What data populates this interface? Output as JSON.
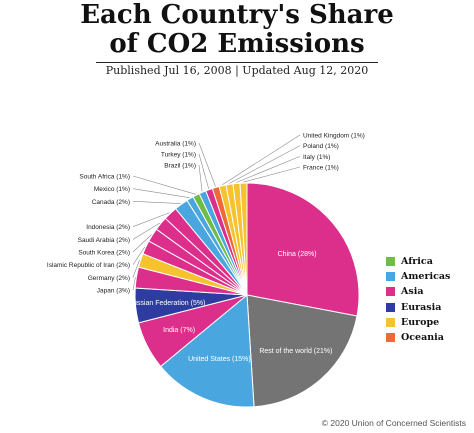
{
  "header": {
    "title_line1": "Each Country's Share",
    "title_line2": "of CO2 Emissions",
    "byline": "Published Jul 16, 2008 | Updated Aug 12, 2020"
  },
  "footer": {
    "copyright": "© 2020 Union of Concerned Scientists"
  },
  "region_colors": {
    "Africa": "#6fbd46",
    "Americas": "#4aa6df",
    "Asia": "#dc2e8b",
    "Eurasia": "#2e3ca0",
    "Europe": "#f6c22f",
    "Oceania": "#ec6a35",
    "Other": "#747474"
  },
  "legend": [
    {
      "label": "Africa",
      "color": "#6fbd46"
    },
    {
      "label": "Americas",
      "color": "#4aa6df"
    },
    {
      "label": "Asia",
      "color": "#dc2e8b"
    },
    {
      "label": "Eurasia",
      "color": "#2e3ca0"
    },
    {
      "label": "Europe",
      "color": "#f6c22f"
    },
    {
      "label": "Oceania",
      "color": "#ec6a35"
    }
  ],
  "chart_data": {
    "type": "pie",
    "title": "Each Country's Share of CO2 Emissions",
    "slices": [
      {
        "name": "China",
        "label": "China (28%)",
        "value": 28,
        "region": "Asia"
      },
      {
        "name": "Rest of the world",
        "label": "Rest of the world (21%)",
        "value": 21,
        "region": "Other"
      },
      {
        "name": "United States",
        "label": "United States (15%)",
        "value": 15,
        "region": "Americas"
      },
      {
        "name": "India",
        "label": "India (7%)",
        "value": 7,
        "region": "Asia"
      },
      {
        "name": "Russian Federation",
        "label": "Russian Federation (5%)",
        "value": 5,
        "region": "Eurasia"
      },
      {
        "name": "Japan",
        "label": "Japan (3%)",
        "value": 3,
        "region": "Asia"
      },
      {
        "name": "Germany",
        "label": "Germany (2%)",
        "value": 2,
        "region": "Europe"
      },
      {
        "name": "Islamic Republic of Iran",
        "label": "Islamic Republic of Iran (2%)",
        "value": 2,
        "region": "Asia"
      },
      {
        "name": "South Korea",
        "label": "South Korea (2%)",
        "value": 2,
        "region": "Asia"
      },
      {
        "name": "Saudi Arabia",
        "label": "Saudi Arabia (2%)",
        "value": 2,
        "region": "Asia"
      },
      {
        "name": "Indonesia",
        "label": "Indonesia (2%)",
        "value": 2,
        "region": "Asia"
      },
      {
        "name": "Canada",
        "label": "Canada (2%)",
        "value": 2,
        "region": "Americas"
      },
      {
        "name": "Mexico",
        "label": "Mexico (1%)",
        "value": 1,
        "region": "Americas"
      },
      {
        "name": "South Africa",
        "label": "South Africa (1%)",
        "value": 1,
        "region": "Africa"
      },
      {
        "name": "Brazil",
        "label": "Brazil (1%)",
        "value": 1,
        "region": "Americas"
      },
      {
        "name": "Turkey",
        "label": "Turkey (1%)",
        "value": 1,
        "region": "Asia"
      },
      {
        "name": "Australia",
        "label": "Australia (1%)",
        "value": 1,
        "region": "Oceania"
      },
      {
        "name": "United Kingdom",
        "label": "United Kingdom (1%)",
        "value": 1,
        "region": "Europe"
      },
      {
        "name": "Poland",
        "label": "Poland (1%)",
        "value": 1,
        "region": "Europe"
      },
      {
        "name": "Italy",
        "label": "Italy (1%)",
        "value": 1,
        "region": "Europe"
      },
      {
        "name": "France",
        "label": "France (1%)",
        "value": 1,
        "region": "Europe"
      }
    ],
    "legend_position": "right"
  }
}
